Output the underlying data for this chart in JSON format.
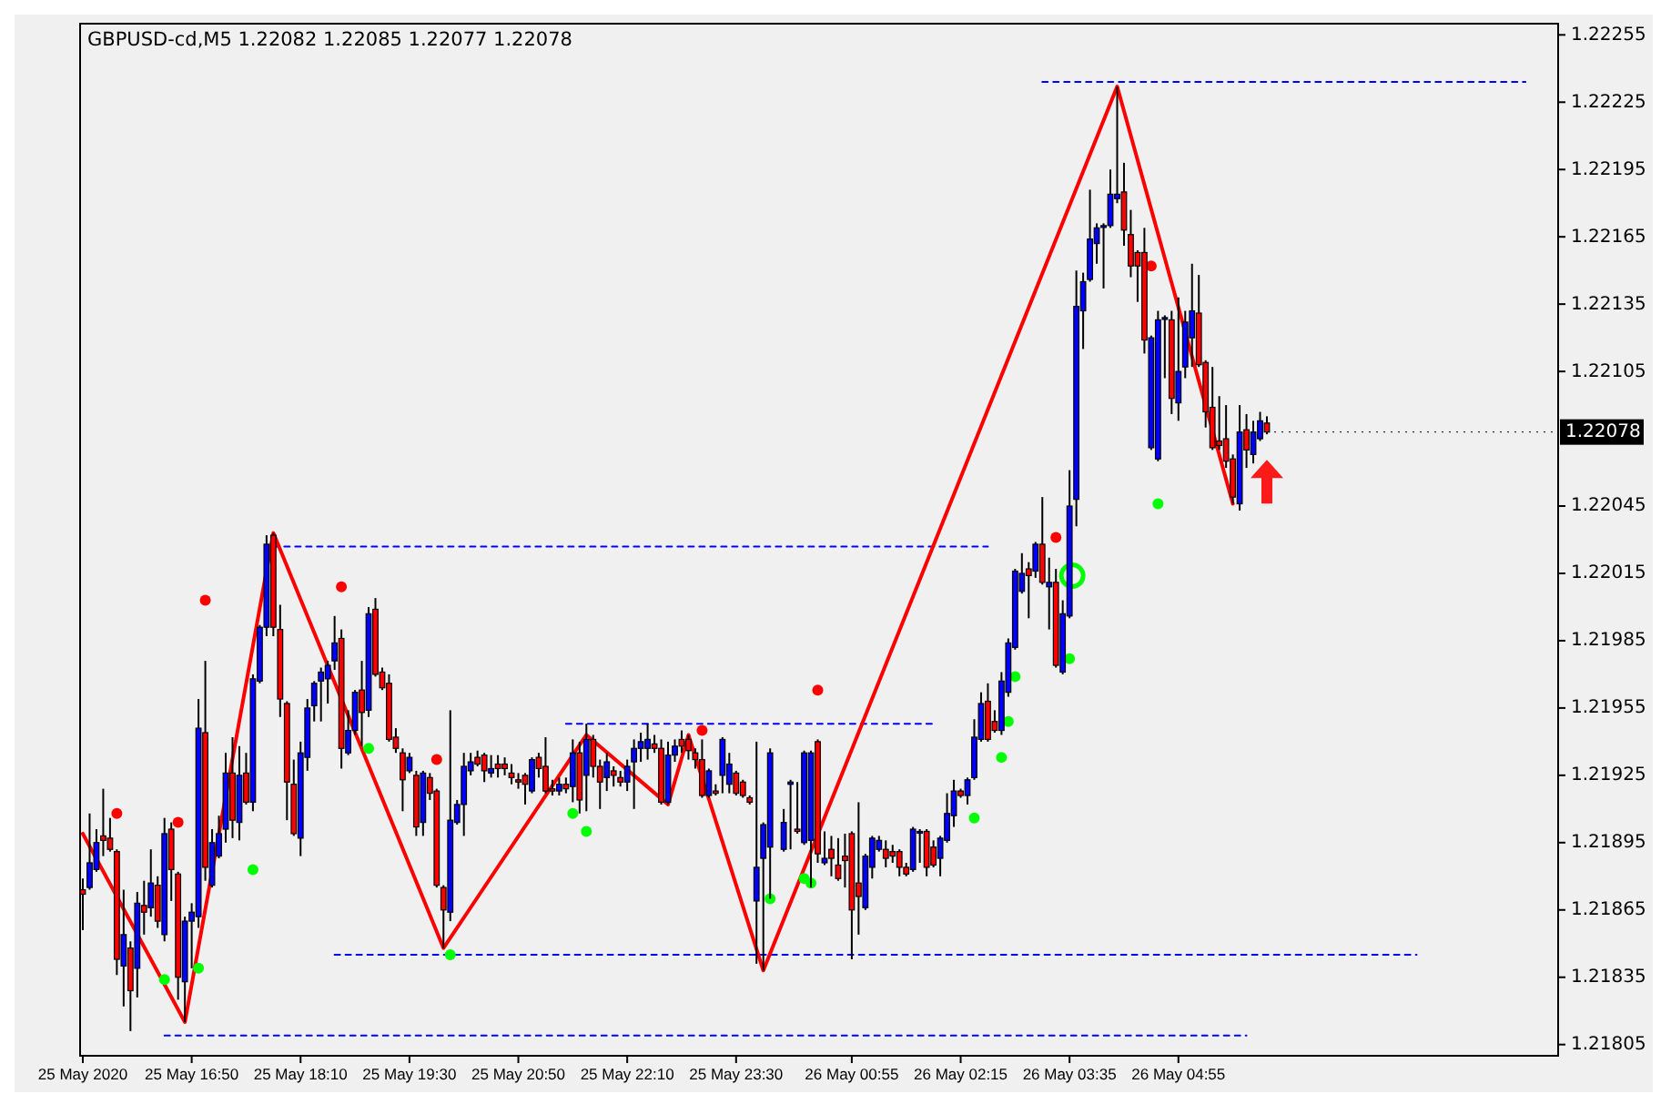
{
  "chart_data": {
    "type": "candlestick",
    "title": "GBPUSD-cd,M5  1.22082 1.22085 1.22077 1.22078",
    "x": [
      "2020-05-25T15:30",
      "2020-05-25T15:35",
      "2020-05-25T15:40",
      "2020-05-25T15:45",
      "2020-05-25T15:50",
      "2020-05-25T15:55",
      "2020-05-25T16:00",
      "2020-05-25T16:05",
      "2020-05-25T16:10",
      "2020-05-25T16:15",
      "2020-05-25T16:20",
      "2020-05-25T16:25",
      "2020-05-25T16:30",
      "2020-05-25T16:35",
      "2020-05-25T16:40",
      "2020-05-25T16:45",
      "2020-05-25T16:50",
      "2020-05-25T16:55",
      "2020-05-25T17:00",
      "2020-05-25T17:05",
      "2020-05-25T17:10",
      "2020-05-25T17:15",
      "2020-05-25T17:20",
      "2020-05-25T17:25",
      "2020-05-25T17:30",
      "2020-05-25T17:35",
      "2020-05-25T17:40",
      "2020-05-25T17:45",
      "2020-05-25T17:50",
      "2020-05-25T17:55",
      "2020-05-25T18:00",
      "2020-05-25T18:05",
      "2020-05-25T18:10",
      "2020-05-25T18:15",
      "2020-05-25T18:20",
      "2020-05-25T18:25",
      "2020-05-25T18:30",
      "2020-05-25T18:35",
      "2020-05-25T18:40",
      "2020-05-25T18:45",
      "2020-05-25T18:50",
      "2020-05-25T18:55",
      "2020-05-25T19:00",
      "2020-05-25T19:05",
      "2020-05-25T19:10",
      "2020-05-25T19:15",
      "2020-05-25T19:20",
      "2020-05-25T19:25",
      "2020-05-25T19:30",
      "2020-05-25T19:35",
      "2020-05-25T19:40",
      "2020-05-25T19:45",
      "2020-05-25T19:50",
      "2020-05-25T19:55",
      "2020-05-25T20:00",
      "2020-05-25T20:05",
      "2020-05-25T20:10",
      "2020-05-25T20:15",
      "2020-05-25T20:20",
      "2020-05-25T20:25",
      "2020-05-25T20:30",
      "2020-05-25T20:35",
      "2020-05-25T20:40",
      "2020-05-25T20:45",
      "2020-05-25T20:50",
      "2020-05-25T20:55",
      "2020-05-25T21:00",
      "2020-05-25T21:05",
      "2020-05-25T21:10",
      "2020-05-25T21:15",
      "2020-05-25T21:20",
      "2020-05-25T21:25",
      "2020-05-25T21:30",
      "2020-05-25T21:35",
      "2020-05-25T21:40",
      "2020-05-25T21:45",
      "2020-05-25T21:50",
      "2020-05-25T21:55",
      "2020-05-25T22:00",
      "2020-05-25T22:05",
      "2020-05-25T22:10",
      "2020-05-25T22:15",
      "2020-05-25T22:20",
      "2020-05-25T22:25",
      "2020-05-25T22:30",
      "2020-05-25T22:35",
      "2020-05-25T22:40",
      "2020-05-25T22:45",
      "2020-05-25T22:50",
      "2020-05-25T22:55",
      "2020-05-25T23:00",
      "2020-05-25T23:05",
      "2020-05-25T23:10",
      "2020-05-25T23:15",
      "2020-05-25T23:20",
      "2020-05-25T23:25",
      "2020-05-25T23:30",
      "2020-05-25T23:35",
      "2020-05-25T23:40",
      "2020-05-25T23:45",
      "2020-05-25T23:50",
      "2020-05-25T23:55",
      "2020-05-26T00:05",
      "2020-05-26T00:10",
      "2020-05-26T00:15",
      "2020-05-26T00:20",
      "2020-05-26T00:25",
      "2020-05-26T00:30",
      "2020-05-26T00:35",
      "2020-05-26T00:40",
      "2020-05-26T00:45",
      "2020-05-26T00:50",
      "2020-05-26T00:55",
      "2020-05-26T01:00",
      "2020-05-26T01:05",
      "2020-05-26T01:10",
      "2020-05-26T01:15",
      "2020-05-26T01:20",
      "2020-05-26T01:25",
      "2020-05-26T01:30",
      "2020-05-26T01:35",
      "2020-05-26T01:40",
      "2020-05-26T01:45",
      "2020-05-26T01:50",
      "2020-05-26T01:55",
      "2020-05-26T02:00",
      "2020-05-26T02:05",
      "2020-05-26T02:10",
      "2020-05-26T02:15",
      "2020-05-26T02:20",
      "2020-05-26T02:25",
      "2020-05-26T02:30",
      "2020-05-26T02:35",
      "2020-05-26T02:40",
      "2020-05-26T02:45",
      "2020-05-26T02:50",
      "2020-05-26T02:55",
      "2020-05-26T03:00",
      "2020-05-26T03:05",
      "2020-05-26T03:10",
      "2020-05-26T03:15",
      "2020-05-26T03:20",
      "2020-05-26T03:25",
      "2020-05-26T03:30",
      "2020-05-26T03:35",
      "2020-05-26T03:40",
      "2020-05-26T03:45",
      "2020-05-26T03:50",
      "2020-05-26T03:55",
      "2020-05-26T04:00",
      "2020-05-26T04:05",
      "2020-05-26T04:10",
      "2020-05-26T04:15",
      "2020-05-26T04:20",
      "2020-05-26T04:25",
      "2020-05-26T04:30",
      "2020-05-26T04:35",
      "2020-05-26T04:40",
      "2020-05-26T04:45",
      "2020-05-26T04:50",
      "2020-05-26T04:55",
      "2020-05-26T05:00",
      "2020-05-26T05:05",
      "2020-05-26T05:10",
      "2020-05-26T05:15",
      "2020-05-26T05:20",
      "2020-05-26T05:25",
      "2020-05-26T05:30",
      "2020-05-26T05:35",
      "2020-05-26T05:40",
      "2020-05-26T05:45",
      "2020-05-26T05:50",
      "2020-05-26T05:55",
      "2020-05-26T06:00"
    ],
    "ohlc": [
      [
        1.21874,
        1.21879,
        1.21856,
        1.21872
      ],
      [
        1.21875,
        1.21908,
        1.21874,
        1.21886
      ],
      [
        1.21883,
        1.21901,
        1.21882,
        1.21895
      ],
      [
        1.21898,
        1.21919,
        1.21889,
        1.21896
      ],
      [
        1.21897,
        1.21906,
        1.21891,
        1.21892
      ],
      [
        1.21891,
        1.21892,
        1.21836,
        1.21843
      ],
      [
        1.2184,
        1.21874,
        1.21822,
        1.21854
      ],
      [
        1.21848,
        1.21851,
        1.21811,
        1.21829
      ],
      [
        1.21839,
        1.21873,
        1.21826,
        1.21868
      ],
      [
        1.21867,
        1.21878,
        1.21854,
        1.21864
      ],
      [
        1.21866,
        1.21892,
        1.21862,
        1.21877
      ],
      [
        1.21876,
        1.2188,
        1.21857,
        1.2186
      ],
      [
        1.21854,
        1.21906,
        1.21851,
        1.21899
      ],
      [
        1.21901,
        1.21904,
        1.21869,
        1.21883
      ],
      [
        1.21881,
        1.21882,
        1.21825,
        1.21835
      ],
      [
        1.21833,
        1.21862,
        1.21815,
        1.2186
      ],
      [
        1.2186,
        1.21868,
        1.21839,
        1.21864
      ],
      [
        1.21862,
        1.21959,
        1.21857,
        1.21946
      ],
      [
        1.21944,
        1.21976,
        1.21878,
        1.21884
      ],
      [
        1.21876,
        1.21901,
        1.21875,
        1.21895
      ],
      [
        1.21889,
        1.21907,
        1.21888,
        1.21899
      ],
      [
        1.21901,
        1.21935,
        1.21895,
        1.21926
      ],
      [
        1.21926,
        1.21942,
        1.21897,
        1.21905
      ],
      [
        1.21904,
        1.21938,
        1.21896,
        1.21925
      ],
      [
        1.21926,
        1.21935,
        1.21912,
        1.21913
      ],
      [
        1.21913,
        1.2197,
        1.21909,
        1.21968
      ],
      [
        1.21967,
        1.21992,
        1.21966,
        1.21991
      ],
      [
        1.21991,
        1.22032,
        1.21987,
        1.22028
      ],
      [
        1.22032,
        1.22033,
        1.21987,
        1.21991
      ],
      [
        1.2199,
        1.22001,
        1.21951,
        1.21959
      ],
      [
        1.21957,
        1.21958,
        1.21905,
        1.21922
      ],
      [
        1.21921,
        1.21932,
        1.21898,
        1.21899
      ],
      [
        1.21897,
        1.2194,
        1.21889,
        1.21935
      ],
      [
        1.21933,
        1.21959,
        1.21927,
        1.21955
      ],
      [
        1.21956,
        1.21967,
        1.21949,
        1.21966
      ],
      [
        1.21967,
        1.21973,
        1.21949,
        1.21971
      ],
      [
        1.21968,
        1.21976,
        1.21957,
        1.21974
      ],
      [
        1.21976,
        1.21996,
        1.21972,
        1.21984
      ],
      [
        1.21986,
        1.2199,
        1.21928,
        1.21937
      ],
      [
        1.21935,
        1.21954,
        1.21934,
        1.21945
      ],
      [
        1.21945,
        1.21963,
        1.21943,
        1.21962
      ],
      [
        1.21963,
        1.21976,
        1.21938,
        1.21953
      ],
      [
        1.21954,
        1.22,
        1.21951,
        1.21997
      ],
      [
        1.21999,
        1.22004,
        1.21969,
        1.2197
      ],
      [
        1.21971,
        1.21973,
        1.21963,
        1.21964
      ],
      [
        1.21966,
        1.2197,
        1.2194,
        1.21941
      ],
      [
        1.21942,
        1.21946,
        1.21935,
        1.21937
      ],
      [
        1.21935,
        1.21937,
        1.21909,
        1.21923
      ],
      [
        1.21927,
        1.21935,
        1.21926,
        1.21933
      ],
      [
        1.21925,
        1.21927,
        1.21898,
        1.21902
      ],
      [
        1.21904,
        1.21927,
        1.21898,
        1.21926
      ],
      [
        1.21924,
        1.21926,
        1.21914,
        1.21917
      ],
      [
        1.21918,
        1.21919,
        1.21875,
        1.21876
      ],
      [
        1.21875,
        1.21876,
        1.21848,
        1.21865
      ],
      [
        1.21864,
        1.21954,
        1.2186,
        1.21905
      ],
      [
        1.21904,
        1.21914,
        1.21903,
        1.21912
      ],
      [
        1.21912,
        1.21935,
        1.21898,
        1.21929
      ],
      [
        1.21927,
        1.21935,
        1.21925,
        1.21931
      ],
      [
        1.21933,
        1.21936,
        1.21929,
        1.2193
      ],
      [
        1.21934,
        1.21935,
        1.21922,
        1.21927
      ],
      [
        1.21926,
        1.21934,
        1.21924,
        1.21928
      ],
      [
        1.2193,
        1.21934,
        1.21924,
        1.21928
      ],
      [
        1.2193,
        1.21933,
        1.21925,
        1.21928
      ],
      [
        1.21926,
        1.2193,
        1.21921,
        1.21924
      ],
      [
        1.21923,
        1.21926,
        1.21919,
        1.21922
      ],
      [
        1.21925,
        1.21926,
        1.21912,
        1.21921
      ],
      [
        1.21918,
        1.21933,
        1.21917,
        1.21932
      ],
      [
        1.21933,
        1.21935,
        1.21924,
        1.21928
      ],
      [
        1.21929,
        1.21942,
        1.21917,
        1.21918
      ],
      [
        1.21919,
        1.21923,
        1.21916,
        1.21918
      ],
      [
        1.21918,
        1.21924,
        1.21916,
        1.21921
      ],
      [
        1.21921,
        1.21924,
        1.21917,
        1.21919
      ],
      [
        1.2192,
        1.21941,
        1.21913,
        1.21935
      ],
      [
        1.21935,
        1.2194,
        1.21908,
        1.21914
      ],
      [
        1.21925,
        1.21948,
        1.21909,
        1.21941
      ],
      [
        1.21941,
        1.21943,
        1.21924,
        1.21929
      ],
      [
        1.21929,
        1.21932,
        1.2191,
        1.21922
      ],
      [
        1.21924,
        1.21935,
        1.21918,
        1.21931
      ],
      [
        1.21927,
        1.21929,
        1.2192,
        1.21925
      ],
      [
        1.21924,
        1.21927,
        1.2192,
        1.21922
      ],
      [
        1.21922,
        1.21932,
        1.21918,
        1.21929
      ],
      [
        1.21931,
        1.21941,
        1.2191,
        1.21937
      ],
      [
        1.21937,
        1.21944,
        1.21931,
        1.2194
      ],
      [
        1.21937,
        1.21948,
        1.21932,
        1.21941
      ],
      [
        1.21939,
        1.21943,
        1.21935,
        1.21937
      ],
      [
        1.21937,
        1.21941,
        1.21912,
        1.21913
      ],
      [
        1.21913,
        1.2194,
        1.21912,
        1.21934
      ],
      [
        1.21934,
        1.21941,
        1.21931,
        1.21938
      ],
      [
        1.21941,
        1.21945,
        1.21935,
        1.21938
      ],
      [
        1.21941,
        1.21943,
        1.21932,
        1.21936
      ],
      [
        1.21935,
        1.21937,
        1.21928,
        1.21932
      ],
      [
        1.21932,
        1.21941,
        1.21915,
        1.21916
      ],
      [
        1.21916,
        1.21928,
        1.21915,
        1.21927
      ],
      [
        1.21918,
        1.21921,
        1.21916,
        1.21917
      ],
      [
        1.21925,
        1.21942,
        1.21917,
        1.21941
      ],
      [
        1.21921,
        1.21935,
        1.21917,
        1.2193
      ],
      [
        1.21926,
        1.21927,
        1.21916,
        1.21917
      ],
      [
        1.21922,
        1.21923,
        1.21915,
        1.21916
      ],
      [
        1.21915,
        1.21916,
        1.21912,
        1.21913
      ],
      [
        1.21869,
        1.2194,
        1.21841,
        1.21884
      ],
      [
        1.21888,
        1.21904,
        1.21838,
        1.21903
      ],
      [
        1.21893,
        1.21937,
        1.2187,
        1.21935
      ],
      [
        1.21892,
        1.2191,
        1.21891,
        1.21904
      ],
      [
        1.21921,
        1.21923,
        1.21892,
        1.21922
      ],
      [
        1.21901,
        1.21922,
        1.21899,
        1.219
      ],
      [
        1.21895,
        1.21936,
        1.21894,
        1.21935
      ],
      [
        1.21896,
        1.21936,
        1.21875,
        1.21935
      ],
      [
        1.2194,
        1.21941,
        1.21886,
        1.2189
      ],
      [
        1.21886,
        1.219,
        1.21885,
        1.21888
      ],
      [
        1.21892,
        1.21898,
        1.2188,
        1.21888
      ],
      [
        1.21885,
        1.21897,
        1.21878,
        1.21879
      ],
      [
        1.21889,
        1.21899,
        1.21875,
        1.21887
      ],
      [
        1.21899,
        1.219,
        1.21843,
        1.21865
      ],
      [
        1.21877,
        1.21913,
        1.21854,
        1.21871
      ],
      [
        1.21866,
        1.2189,
        1.21865,
        1.21889
      ],
      [
        1.21884,
        1.21898,
        1.21879,
        1.21897
      ],
      [
        1.21892,
        1.21898,
        1.21891,
        1.21896
      ],
      [
        1.21892,
        1.21896,
        1.21884,
        1.21888
      ],
      [
        1.21891,
        1.21894,
        1.21886,
        1.21889
      ],
      [
        1.21891,
        1.21892,
        1.2188,
        1.21884
      ],
      [
        1.21884,
        1.21886,
        1.2188,
        1.21881
      ],
      [
        1.21883,
        1.21902,
        1.21882,
        1.21901
      ],
      [
        1.219,
        1.21901,
        1.21886,
        1.219
      ],
      [
        1.219,
        1.21901,
        1.2188,
        1.21884
      ],
      [
        1.21893,
        1.21896,
        1.21884,
        1.21885
      ],
      [
        1.21888,
        1.21898,
        1.2188,
        1.21897
      ],
      [
        1.21896,
        1.21917,
        1.21895,
        1.21908
      ],
      [
        1.21907,
        1.21923,
        1.21902,
        1.21918
      ],
      [
        1.21918,
        1.21919,
        1.21915,
        1.21916
      ],
      [
        1.21916,
        1.21924,
        1.21912,
        1.21923
      ],
      [
        1.21924,
        1.2195,
        1.21923,
        1.21942
      ],
      [
        1.21941,
        1.21962,
        1.2194,
        1.21957
      ],
      [
        1.21958,
        1.21966,
        1.2194,
        1.21941
      ],
      [
        1.21949,
        1.21954,
        1.21944,
        1.21945
      ],
      [
        1.21945,
        1.21971,
        1.21943,
        1.21967
      ],
      [
        1.21962,
        1.21986,
        1.2196,
        1.21984
      ],
      [
        1.21982,
        1.22017,
        1.21981,
        1.22016
      ],
      [
        1.22007,
        1.22024,
        1.22006,
        1.22015
      ],
      [
        1.22017,
        1.2202,
        1.21995,
        1.22014
      ],
      [
        1.22016,
        1.22029,
        1.22013,
        1.22028
      ],
      [
        1.22028,
        1.22049,
        1.2201,
        1.22011
      ],
      [
        1.22009,
        1.22022,
        1.2199,
        1.22011
      ],
      [
        1.22011,
        1.22017,
        1.21973,
        1.21974
      ],
      [
        1.21971,
        1.22003,
        1.2197,
        1.21997
      ],
      [
        1.21996,
        1.22061,
        1.21995,
        1.22045
      ],
      [
        1.22048,
        1.2215,
        1.22036,
        1.22134
      ],
      [
        1.22132,
        1.22149,
        1.22115,
        1.22145
      ],
      [
        1.22146,
        1.22186,
        1.22145,
        1.22164
      ],
      [
        1.22162,
        1.22171,
        1.22153,
        1.22169
      ],
      [
        1.2217,
        1.22171,
        1.22142,
        1.2217
      ],
      [
        1.2217,
        1.22195,
        1.22169,
        1.22184
      ],
      [
        1.22182,
        1.22232,
        1.2218,
        1.22184
      ],
      [
        1.22185,
        1.22198,
        1.22161,
        1.22168
      ],
      [
        1.22166,
        1.22177,
        1.22147,
        1.22152
      ],
      [
        1.22158,
        1.22159,
        1.22136,
        1.22152
      ],
      [
        1.22158,
        1.22169,
        1.22113,
        1.22119
      ],
      [
        1.22071,
        1.22121,
        1.2207,
        1.2212
      ],
      [
        1.22066,
        1.22132,
        1.22065,
        1.22128
      ],
      [
        1.22129,
        1.2213,
        1.22102,
        1.22129
      ],
      [
        1.22128,
        1.22132,
        1.22086,
        1.22093
      ],
      [
        1.22091,
        1.22138,
        1.22083,
        1.22105
      ],
      [
        1.22107,
        1.22132,
        1.22102,
        1.22127
      ],
      [
        1.2212,
        1.22153,
        1.22107,
        1.22132
      ],
      [
        1.22131,
        1.22148,
        1.22107,
        1.22108
      ],
      [
        1.22109,
        1.2211,
        1.2208,
        1.22087
      ],
      [
        1.22089,
        1.22107,
        1.2207,
        1.22071
      ],
      [
        1.22074,
        1.22094,
        1.2207,
        1.22072
      ],
      [
        1.22075,
        1.2209,
        1.22062,
        1.22065
      ],
      [
        1.22066,
        1.22068,
        1.22046,
        1.22049
      ],
      [
        1.22046,
        1.2209,
        1.22043,
        1.22078
      ],
      [
        1.22079,
        1.22086,
        1.22062,
        1.2207
      ],
      [
        1.22068,
        1.22083,
        1.22064,
        1.22078
      ],
      [
        1.22075,
        1.22087,
        1.22074,
        1.22083
      ],
      [
        1.22082,
        1.22085,
        1.22077,
        1.22078
      ]
    ],
    "colors": [
      "#ff0000",
      "#0000ff",
      "#0000ff",
      "#ff0000",
      "#ff0000",
      "#ff0000",
      "#0000ff",
      "#ff0000",
      "#0000ff",
      "#ff0000",
      "#0000ff",
      "#ff0000",
      "#0000ff",
      "#ff0000",
      "#ff0000",
      "#0000ff",
      "#0000ff",
      "#0000ff",
      "#ff0000",
      "#0000ff",
      "#0000ff",
      "#0000ff",
      "#ff0000",
      "#0000ff",
      "#ff0000",
      "#0000ff",
      "#0000ff",
      "#0000ff",
      "#ff0000",
      "#ff0000",
      "#ff0000",
      "#ff0000",
      "#0000ff",
      "#0000ff",
      "#0000ff",
      "#0000ff",
      "#0000ff",
      "#0000ff",
      "#ff0000",
      "#0000ff",
      "#0000ff",
      "#ff0000",
      "#0000ff",
      "#ff0000",
      "#ff0000",
      "#ff0000",
      "#ff0000",
      "#ff0000",
      "#0000ff",
      "#ff0000",
      "#0000ff",
      "#ff0000",
      "#ff0000",
      "#ff0000",
      "#0000ff",
      "#0000ff",
      "#0000ff",
      "#0000ff",
      "#ff0000",
      "#ff0000",
      "#0000ff",
      "#ff0000",
      "#ff0000",
      "#ff0000",
      "#ff0000",
      "#ff0000",
      "#0000ff",
      "#ff0000",
      "#ff0000",
      "#ff0000",
      "#0000ff",
      "#ff0000",
      "#0000ff",
      "#ff0000",
      "#0000ff",
      "#ff0000",
      "#ff0000",
      "#0000ff",
      "#ff0000",
      "#ff0000",
      "#0000ff",
      "#0000ff",
      "#0000ff",
      "#0000ff",
      "#ff0000",
      "#ff0000",
      "#0000ff",
      "#0000ff",
      "#ff0000",
      "#ff0000",
      "#ff0000",
      "#ff0000",
      "#0000ff",
      "#ff0000",
      "#0000ff",
      "#0000ff",
      "#ff0000",
      "#ff0000",
      "#ff0000",
      "#0000ff",
      "#0000ff",
      "#0000ff",
      "#0000ff",
      "#0000ff",
      "#ff0000",
      "#0000ff",
      "#0000ff",
      "#ff0000",
      "#0000ff",
      "#ff0000",
      "#ff0000",
      "#ff0000",
      "#ff0000",
      "#ff0000",
      "#0000ff",
      "#0000ff",
      "#0000ff",
      "#ff0000",
      "#ff0000",
      "#ff0000",
      "#ff0000",
      "#0000ff",
      "#0000ff",
      "#ff0000",
      "#ff0000",
      "#0000ff",
      "#0000ff",
      "#0000ff",
      "#ff0000",
      "#0000ff",
      "#0000ff",
      "#0000ff",
      "#ff0000",
      "#ff0000",
      "#0000ff",
      "#0000ff",
      "#0000ff",
      "#0000ff",
      "#ff0000",
      "#0000ff",
      "#ff0000",
      "#0000ff",
      "#ff0000",
      "#0000ff",
      "#0000ff",
      "#0000ff",
      "#0000ff",
      "#0000ff",
      "#0000ff",
      "#0000ff",
      "#0000ff",
      "#0000ff",
      "#ff0000",
      "#ff0000",
      "#ff0000",
      "#ff0000",
      "#0000ff",
      "#0000ff",
      "#0000ff",
      "#ff0000",
      "#0000ff",
      "#0000ff",
      "#0000ff",
      "#ff0000",
      "#ff0000",
      "#ff0000",
      "#ff0000",
      "#ff0000",
      "#ff0000",
      "#0000ff",
      "#ff0000",
      "#0000ff",
      "#0000ff",
      "#ff0000"
    ],
    "series": [
      {
        "type": "line",
        "color": "#0000ff",
        "line_style": "dashed",
        "x": [
          "2020-05-26T03:15",
          "2020-05-26T09:10"
        ],
        "values": [
          1.22234,
          1.22234
        ]
      },
      {
        "type": "line",
        "color": "#0000ff",
        "line_style": "dashed",
        "x": [
          "2020-05-25T17:50",
          "2020-05-26T02:35"
        ],
        "values": [
          1.22027,
          1.22027
        ]
      },
      {
        "type": "line",
        "color": "#0000ff",
        "line_style": "dashed",
        "x": [
          "2020-05-25T21:25",
          "2020-05-26T01:55"
        ],
        "values": [
          1.21948,
          1.21948
        ]
      },
      {
        "type": "line",
        "color": "#0000ff",
        "line_style": "dashed",
        "x": [
          "2020-05-25T18:35",
          "2020-05-26T07:50"
        ],
        "values": [
          1.21845,
          1.21845
        ]
      },
      {
        "type": "line",
        "color": "#0000ff",
        "line_style": "dashed",
        "x": [
          "2020-05-25T16:30",
          "2020-05-26T05:45"
        ],
        "values": [
          1.21809,
          1.21809
        ]
      },
      {
        "type": "line",
        "color": "#ff0000",
        "line_style": "solid",
        "x": [
          "2020-05-25T15:30",
          "2020-05-25T16:45",
          "2020-05-25T17:50",
          "2020-05-25T19:55",
          "2020-05-25T21:40",
          "2020-05-25T22:40",
          "2020-05-25T22:55",
          "2020-05-25T23:50",
          "2020-05-26T04:10",
          "2020-05-26T05:35"
        ],
        "values": [
          1.21899,
          1.21815,
          1.22033,
          1.21848,
          1.21943,
          1.21912,
          1.21943,
          1.21838,
          1.22232,
          1.22046
        ]
      },
      {
        "type": "scatter",
        "color": "#ff0000",
        "marker": "circle",
        "x": [
          "2020-05-25T15:55",
          "2020-05-25T16:40",
          "2020-05-25T17:00",
          "2020-05-25T18:40",
          "2020-05-25T19:50",
          "2020-05-25T23:05",
          "2020-05-26T00:30",
          "2020-05-26T03:25",
          "2020-05-26T04:35"
        ],
        "values": [
          1.21908,
          1.21904,
          1.22003,
          1.22009,
          1.21932,
          1.21945,
          1.21963,
          1.22031,
          1.22152
        ]
      },
      {
        "type": "scatter",
        "color": "#00ff00",
        "marker": "circle",
        "x": [
          "2020-05-25T16:30",
          "2020-05-25T16:55",
          "2020-05-25T17:35",
          "2020-05-25T19:00",
          "2020-05-25T20:00",
          "2020-05-25T21:30",
          "2020-05-25T21:40",
          "2020-05-25T23:55",
          "2020-05-26T00:20",
          "2020-05-26T00:25",
          "2020-05-26T02:25",
          "2020-05-26T02:45",
          "2020-05-26T02:50",
          "2020-05-26T02:55",
          "2020-05-26T03:35",
          "2020-05-26T04:40"
        ],
        "values": [
          1.21834,
          1.21839,
          1.21883,
          1.21937,
          1.21845,
          1.21908,
          1.219,
          1.2187,
          1.21879,
          1.21877,
          1.21906,
          1.21933,
          1.21949,
          1.21969,
          1.21977,
          1.22046
        ]
      },
      {
        "type": "scatter",
        "color": "#00ff00",
        "marker": "circle",
        "x": [
          "2020-05-26T03:37"
        ],
        "values": [
          1.22014
        ],
        "sizes": [
          1
        ]
      }
    ],
    "annotations": [
      {
        "text": "1.22078",
        "x": "2020-05-26T06:00",
        "y": 1.22078
      }
    ],
    "xlim": [
      "2020-05-25T15:28",
      "2020-05-26T09:34"
    ],
    "xticks": [
      {
        "value": "2020-05-25T15:30",
        "label": "25 May 2020"
      },
      {
        "value": "2020-05-25T16:50",
        "label": "25 May 16:50"
      },
      {
        "value": "2020-05-25T18:10",
        "label": "25 May 18:10"
      },
      {
        "value": "2020-05-25T19:30",
        "label": "25 May 19:30"
      },
      {
        "value": "2020-05-25T20:50",
        "label": "25 May 20:50"
      },
      {
        "value": "2020-05-25T22:10",
        "label": "25 May 22:10"
      },
      {
        "value": "2020-05-25T23:30",
        "label": "25 May 23:30"
      },
      {
        "value": "2020-05-26T00:55",
        "label": "26 May 00:55"
      },
      {
        "value": "2020-05-26T02:15",
        "label": "26 May 02:15"
      },
      {
        "value": "2020-05-26T03:35",
        "label": "26 May 03:35"
      },
      {
        "value": "2020-05-26T04:55",
        "label": "26 May 04:55"
      }
    ],
    "ylim": [
      1.218,
      1.2226
    ],
    "yticks": [
      1.21805,
      1.21835,
      1.21865,
      1.21895,
      1.21925,
      1.21955,
      1.21985,
      1.22015,
      1.22045,
      1.22105,
      1.22135,
      1.22165,
      1.22195,
      1.22225,
      1.22255
    ]
  }
}
